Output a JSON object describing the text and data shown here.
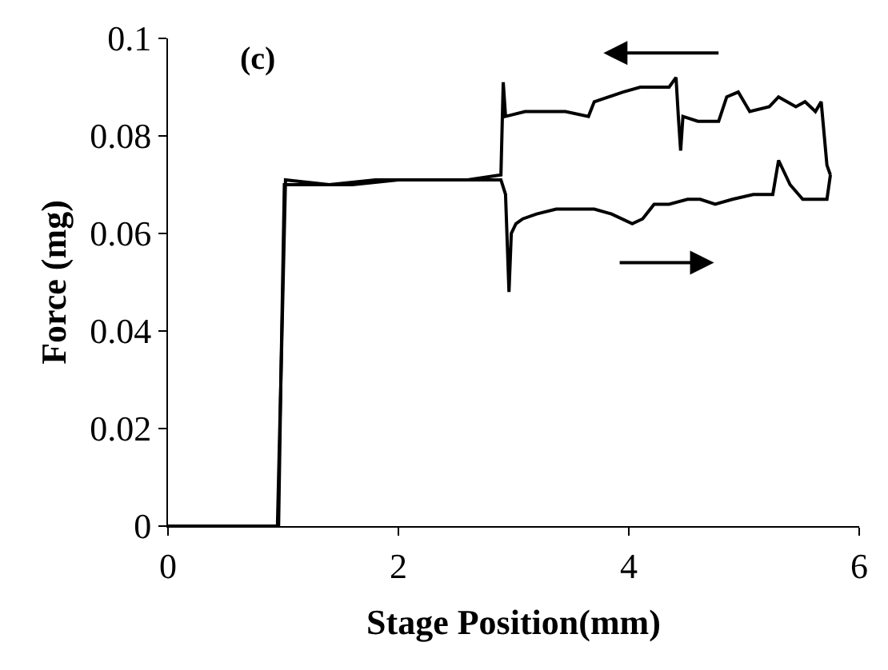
{
  "chart_data": {
    "type": "line",
    "xlabel": "Stage Position(mm)",
    "ylabel": "Force (mg)",
    "annotations": [
      "(c)"
    ],
    "series": [
      {
        "color": "#000000",
        "x": [
          0,
          0.3,
          0.6,
          0.85,
          0.95,
          0.98,
          1.01,
          1.3,
          1.6,
          2.0,
          2.4,
          2.7,
          2.89,
          2.93,
          2.96,
          2.98,
          3.02,
          3.08,
          3.2,
          3.37,
          3.55,
          3.7,
          3.85,
          4.03,
          4.12,
          4.22,
          4.35,
          4.51,
          4.62,
          4.75,
          4.9,
          5.08,
          5.18,
          5.25,
          5.3,
          5.4,
          5.51,
          5.62,
          5.72,
          5.75
        ],
        "values": [
          0,
          0,
          0,
          0,
          0,
          0.03,
          0.07,
          0.07,
          0.07,
          0.071,
          0.071,
          0.071,
          0.071,
          0.068,
          0.048,
          0.06,
          0.062,
          0.063,
          0.064,
          0.065,
          0.065,
          0.065,
          0.064,
          0.062,
          0.063,
          0.066,
          0.066,
          0.067,
          0.067,
          0.066,
          0.067,
          0.068,
          0.068,
          0.068,
          0.075,
          0.07,
          0.067,
          0.067,
          0.067,
          0.072
        ]
      },
      {
        "color": "#000000",
        "x": [
          5.75,
          5.72,
          5.67,
          5.62,
          5.53,
          5.45,
          5.3,
          5.22,
          5.05,
          4.95,
          4.85,
          4.78,
          4.6,
          4.47,
          4.45,
          4.43,
          4.41,
          4.35,
          4.1,
          3.95,
          3.7,
          3.65,
          3.45,
          3.27,
          3.1,
          2.93,
          2.91,
          2.89,
          2.6,
          2.2,
          1.8,
          1.4,
          1.02,
          0.98,
          0.96,
          0.7,
          0.4,
          0
        ],
        "values": [
          0.072,
          0.074,
          0.087,
          0.085,
          0.087,
          0.086,
          0.088,
          0.086,
          0.085,
          0.089,
          0.088,
          0.083,
          0.083,
          0.084,
          0.077,
          0.084,
          0.092,
          0.09,
          0.09,
          0.089,
          0.087,
          0.084,
          0.085,
          0.085,
          0.085,
          0.084,
          0.091,
          0.072,
          0.071,
          0.071,
          0.071,
          0.07,
          0.071,
          0.03,
          0,
          0,
          0,
          0
        ]
      }
    ],
    "xlim": [
      0,
      6
    ],
    "xticks": [
      0,
      2,
      4,
      6
    ],
    "ylim": [
      0,
      0.1
    ],
    "yticks": [
      0,
      0.02,
      0.04,
      0.06,
      0.08,
      0.1
    ],
    "marker": "none",
    "line_style": "solid"
  }
}
